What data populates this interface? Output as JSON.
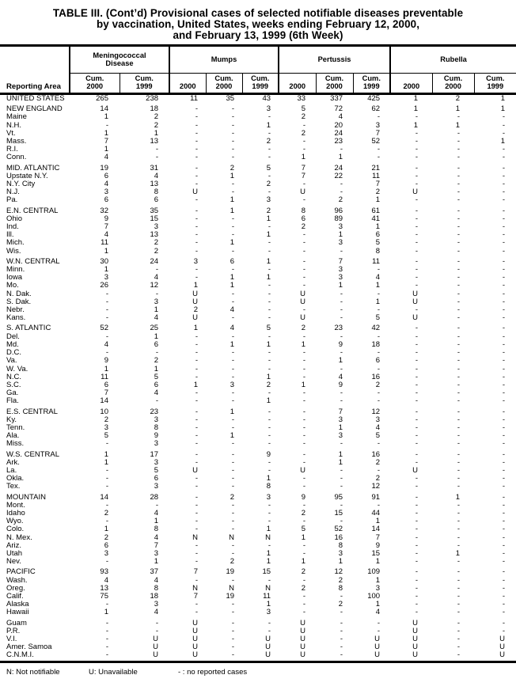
{
  "title": {
    "line1": "TABLE III. (Cont’d) Provisional cases of selected notifiable diseases preventable",
    "line2": "by vaccination, United States, weeks ending February 12, 2000,",
    "line3": "and February 13, 1999 (6th Week)"
  },
  "table": {
    "reporting_area_label": "Reporting Area",
    "groups": [
      {
        "label": "Meningococcal\nDisease",
        "span": 2
      },
      {
        "label": "Mumps",
        "span": 3
      },
      {
        "label": "Pertussis",
        "span": 3
      },
      {
        "label": "Rubella",
        "span": 3
      }
    ],
    "subheads": [
      "Cum.\n2000",
      "Cum.\n1999",
      "2000",
      "Cum.\n2000",
      "Cum.\n1999",
      "2000",
      "Cum.\n2000",
      "Cum.\n1999",
      "2000",
      "Cum.\n2000",
      "Cum.\n1999"
    ],
    "rows": [
      {
        "area": "UNITED STATES",
        "gap_before": false,
        "values": [
          "265",
          "238",
          "11",
          "35",
          "43",
          "33",
          "337",
          "425",
          "1",
          "2",
          "1"
        ]
      },
      {
        "area": "NEW ENGLAND",
        "gap_before": true,
        "values": [
          "14",
          "18",
          "-",
          "-",
          "3",
          "5",
          "72",
          "62",
          "1",
          "1",
          "1"
        ]
      },
      {
        "area": "Maine",
        "gap_before": false,
        "values": [
          "1",
          "2",
          "-",
          "-",
          "-",
          "2",
          "4",
          "-",
          "-",
          "-",
          "-"
        ]
      },
      {
        "area": "N.H.",
        "gap_before": false,
        "values": [
          "-",
          "2",
          "-",
          "-",
          "1",
          "-",
          "20",
          "3",
          "1",
          "1",
          "-"
        ]
      },
      {
        "area": "Vt.",
        "gap_before": false,
        "values": [
          "1",
          "1",
          "-",
          "-",
          "-",
          "2",
          "24",
          "7",
          "-",
          "-",
          "-"
        ]
      },
      {
        "area": "Mass.",
        "gap_before": false,
        "values": [
          "7",
          "13",
          "-",
          "-",
          "2",
          "-",
          "23",
          "52",
          "-",
          "-",
          "1"
        ]
      },
      {
        "area": "R.I.",
        "gap_before": false,
        "values": [
          "1",
          "-",
          "-",
          "-",
          "-",
          "-",
          "-",
          "-",
          "-",
          "-",
          "-"
        ]
      },
      {
        "area": "Conn.",
        "gap_before": false,
        "values": [
          "4",
          "-",
          "-",
          "-",
          "-",
          "1",
          "1",
          "-",
          "-",
          "-",
          "-"
        ]
      },
      {
        "area": "MID. ATLANTIC",
        "gap_before": true,
        "values": [
          "19",
          "31",
          "-",
          "2",
          "5",
          "7",
          "24",
          "21",
          "-",
          "-",
          "-"
        ]
      },
      {
        "area": "Upstate N.Y.",
        "gap_before": false,
        "values": [
          "6",
          "4",
          "-",
          "1",
          "-",
          "7",
          "22",
          "11",
          "-",
          "-",
          "-"
        ]
      },
      {
        "area": "N.Y. City",
        "gap_before": false,
        "values": [
          "4",
          "13",
          "-",
          "-",
          "2",
          "-",
          "-",
          "7",
          "-",
          "-",
          "-"
        ]
      },
      {
        "area": "N.J.",
        "gap_before": false,
        "values": [
          "3",
          "8",
          "U",
          "-",
          "-",
          "U",
          "-",
          "2",
          "U",
          "-",
          "-"
        ]
      },
      {
        "area": "Pa.",
        "gap_before": false,
        "values": [
          "6",
          "6",
          "-",
          "1",
          "3",
          "-",
          "2",
          "1",
          "-",
          "-",
          "-"
        ]
      },
      {
        "area": "E.N. CENTRAL",
        "gap_before": true,
        "values": [
          "32",
          "35",
          "-",
          "1",
          "2",
          "8",
          "96",
          "61",
          "-",
          "-",
          "-"
        ]
      },
      {
        "area": "Ohio",
        "gap_before": false,
        "values": [
          "9",
          "15",
          "-",
          "-",
          "1",
          "6",
          "89",
          "41",
          "-",
          "-",
          "-"
        ]
      },
      {
        "area": "Ind.",
        "gap_before": false,
        "values": [
          "7",
          "3",
          "-",
          "-",
          "-",
          "2",
          "3",
          "1",
          "-",
          "-",
          "-"
        ]
      },
      {
        "area": "Ill.",
        "gap_before": false,
        "values": [
          "4",
          "13",
          "-",
          "-",
          "1",
          "-",
          "1",
          "6",
          "-",
          "-",
          "-"
        ]
      },
      {
        "area": "Mich.",
        "gap_before": false,
        "values": [
          "11",
          "2",
          "-",
          "1",
          "-",
          "-",
          "3",
          "5",
          "-",
          "-",
          "-"
        ]
      },
      {
        "area": "Wis.",
        "gap_before": false,
        "values": [
          "1",
          "2",
          "-",
          "-",
          "-",
          "-",
          "-",
          "8",
          "-",
          "-",
          "-"
        ]
      },
      {
        "area": "W.N. CENTRAL",
        "gap_before": true,
        "values": [
          "30",
          "24",
          "3",
          "6",
          "1",
          "-",
          "7",
          "11",
          "-",
          "-",
          "-"
        ]
      },
      {
        "area": "Minn.",
        "gap_before": false,
        "values": [
          "1",
          "-",
          "-",
          "-",
          "-",
          "-",
          "3",
          "-",
          "-",
          "-",
          "-"
        ]
      },
      {
        "area": "Iowa",
        "gap_before": false,
        "values": [
          "3",
          "4",
          "-",
          "1",
          "1",
          "-",
          "3",
          "4",
          "-",
          "-",
          "-"
        ]
      },
      {
        "area": "Mo.",
        "gap_before": false,
        "values": [
          "26",
          "12",
          "1",
          "1",
          "-",
          "-",
          "1",
          "1",
          "-",
          "-",
          "-"
        ]
      },
      {
        "area": "N. Dak.",
        "gap_before": false,
        "values": [
          "-",
          "-",
          "U",
          "-",
          "-",
          "U",
          "-",
          "-",
          "U",
          "-",
          "-"
        ]
      },
      {
        "area": "S. Dak.",
        "gap_before": false,
        "values": [
          "-",
          "3",
          "U",
          "-",
          "-",
          "U",
          "-",
          "1",
          "U",
          "-",
          "-"
        ]
      },
      {
        "area": "Nebr.",
        "gap_before": false,
        "values": [
          "-",
          "1",
          "2",
          "4",
          "-",
          "-",
          "-",
          "-",
          "-",
          "-",
          "-"
        ]
      },
      {
        "area": "Kans.",
        "gap_before": false,
        "values": [
          "-",
          "4",
          "U",
          "-",
          "-",
          "U",
          "-",
          "5",
          "U",
          "-",
          "-"
        ]
      },
      {
        "area": "S. ATLANTIC",
        "gap_before": true,
        "values": [
          "52",
          "25",
          "1",
          "4",
          "5",
          "2",
          "23",
          "42",
          "-",
          "-",
          "-"
        ]
      },
      {
        "area": "Del.",
        "gap_before": false,
        "values": [
          "-",
          "1",
          "-",
          "-",
          "-",
          "-",
          "-",
          "-",
          "-",
          "-",
          "-"
        ]
      },
      {
        "area": "Md.",
        "gap_before": false,
        "values": [
          "4",
          "6",
          "-",
          "1",
          "1",
          "1",
          "9",
          "18",
          "-",
          "-",
          "-"
        ]
      },
      {
        "area": "D.C.",
        "gap_before": false,
        "values": [
          "-",
          "-",
          "-",
          "-",
          "-",
          "-",
          "-",
          "-",
          "-",
          "-",
          "-"
        ]
      },
      {
        "area": "Va.",
        "gap_before": false,
        "values": [
          "9",
          "2",
          "-",
          "-",
          "-",
          "-",
          "1",
          "6",
          "-",
          "-",
          "-"
        ]
      },
      {
        "area": "W. Va.",
        "gap_before": false,
        "values": [
          "1",
          "1",
          "-",
          "-",
          "-",
          "-",
          "-",
          "-",
          "-",
          "-",
          "-"
        ]
      },
      {
        "area": "N.C.",
        "gap_before": false,
        "values": [
          "11",
          "5",
          "-",
          "-",
          "1",
          "-",
          "4",
          "16",
          "-",
          "-",
          "-"
        ]
      },
      {
        "area": "S.C.",
        "gap_before": false,
        "values": [
          "6",
          "6",
          "1",
          "3",
          "2",
          "1",
          "9",
          "2",
          "-",
          "-",
          "-"
        ]
      },
      {
        "area": "Ga.",
        "gap_before": false,
        "values": [
          "7",
          "4",
          "-",
          "-",
          "-",
          "-",
          "-",
          "-",
          "-",
          "-",
          "-"
        ]
      },
      {
        "area": "Fla.",
        "gap_before": false,
        "values": [
          "14",
          "-",
          "-",
          "-",
          "1",
          "-",
          "-",
          "-",
          "-",
          "-",
          "-"
        ]
      },
      {
        "area": "E.S. CENTRAL",
        "gap_before": true,
        "values": [
          "10",
          "23",
          "-",
          "1",
          "-",
          "-",
          "7",
          "12",
          "-",
          "-",
          "-"
        ]
      },
      {
        "area": "Ky.",
        "gap_before": false,
        "values": [
          "2",
          "3",
          "-",
          "-",
          "-",
          "-",
          "3",
          "3",
          "-",
          "-",
          "-"
        ]
      },
      {
        "area": "Tenn.",
        "gap_before": false,
        "values": [
          "3",
          "8",
          "-",
          "-",
          "-",
          "-",
          "1",
          "4",
          "-",
          "-",
          "-"
        ]
      },
      {
        "area": "Ala.",
        "gap_before": false,
        "values": [
          "5",
          "9",
          "-",
          "1",
          "-",
          "-",
          "3",
          "5",
          "-",
          "-",
          "-"
        ]
      },
      {
        "area": "Miss.",
        "gap_before": false,
        "values": [
          "-",
          "3",
          "-",
          "-",
          "-",
          "-",
          "-",
          "-",
          "-",
          "-",
          "-"
        ]
      },
      {
        "area": "W.S. CENTRAL",
        "gap_before": true,
        "values": [
          "1",
          "17",
          "-",
          "-",
          "9",
          "-",
          "1",
          "16",
          "-",
          "-",
          "-"
        ]
      },
      {
        "area": "Ark.",
        "gap_before": false,
        "values": [
          "1",
          "3",
          "-",
          "-",
          "-",
          "-",
          "1",
          "2",
          "-",
          "-",
          "-"
        ]
      },
      {
        "area": "La.",
        "gap_before": false,
        "values": [
          "-",
          "5",
          "U",
          "-",
          "-",
          "U",
          "-",
          "-",
          "U",
          "-",
          "-"
        ]
      },
      {
        "area": "Okla.",
        "gap_before": false,
        "values": [
          "-",
          "6",
          "-",
          "-",
          "1",
          "-",
          "-",
          "2",
          "-",
          "-",
          "-"
        ]
      },
      {
        "area": "Tex.",
        "gap_before": false,
        "values": [
          "-",
          "3",
          "-",
          "-",
          "8",
          "-",
          "-",
          "12",
          "-",
          "-",
          "-"
        ]
      },
      {
        "area": "MOUNTAIN",
        "gap_before": true,
        "values": [
          "14",
          "28",
          "-",
          "2",
          "3",
          "9",
          "95",
          "91",
          "-",
          "1",
          "-"
        ]
      },
      {
        "area": "Mont.",
        "gap_before": false,
        "values": [
          "-",
          "-",
          "-",
          "-",
          "-",
          "-",
          "-",
          "-",
          "-",
          "-",
          "-"
        ]
      },
      {
        "area": "Idaho",
        "gap_before": false,
        "values": [
          "2",
          "4",
          "-",
          "-",
          "-",
          "2",
          "15",
          "44",
          "-",
          "-",
          "-"
        ]
      },
      {
        "area": "Wyo.",
        "gap_before": false,
        "values": [
          "-",
          "1",
          "-",
          "-",
          "-",
          "-",
          "-",
          "1",
          "-",
          "-",
          "-"
        ]
      },
      {
        "area": "Colo.",
        "gap_before": false,
        "values": [
          "1",
          "8",
          "-",
          "-",
          "1",
          "5",
          "52",
          "14",
          "-",
          "-",
          "-"
        ]
      },
      {
        "area": "N. Mex.",
        "gap_before": false,
        "values": [
          "2",
          "4",
          "N",
          "N",
          "N",
          "1",
          "16",
          "7",
          "-",
          "-",
          "-"
        ]
      },
      {
        "area": "Ariz.",
        "gap_before": false,
        "values": [
          "6",
          "7",
          "-",
          "-",
          "-",
          "-",
          "8",
          "9",
          "-",
          "-",
          "-"
        ]
      },
      {
        "area": "Utah",
        "gap_before": false,
        "values": [
          "3",
          "3",
          "-",
          "-",
          "1",
          "-",
          "3",
          "15",
          "-",
          "1",
          "-"
        ]
      },
      {
        "area": "Nev.",
        "gap_before": false,
        "values": [
          "-",
          "1",
          "-",
          "2",
          "1",
          "1",
          "1",
          "1",
          "-",
          "-",
          "-"
        ]
      },
      {
        "area": "PACIFIC",
        "gap_before": true,
        "values": [
          "93",
          "37",
          "7",
          "19",
          "15",
          "2",
          "12",
          "109",
          "-",
          "-",
          "-"
        ]
      },
      {
        "area": "Wash.",
        "gap_before": false,
        "values": [
          "4",
          "4",
          "-",
          "-",
          "-",
          "-",
          "2",
          "1",
          "-",
          "-",
          "-"
        ]
      },
      {
        "area": "Oreg.",
        "gap_before": false,
        "values": [
          "13",
          "8",
          "N",
          "N",
          "N",
          "2",
          "8",
          "3",
          "-",
          "-",
          "-"
        ]
      },
      {
        "area": "Calif.",
        "gap_before": false,
        "values": [
          "75",
          "18",
          "7",
          "19",
          "11",
          "-",
          "-",
          "100",
          "-",
          "-",
          "-"
        ]
      },
      {
        "area": "Alaska",
        "gap_before": false,
        "values": [
          "-",
          "3",
          "-",
          "-",
          "1",
          "-",
          "2",
          "1",
          "-",
          "-",
          "-"
        ]
      },
      {
        "area": "Hawaii",
        "gap_before": false,
        "values": [
          "1",
          "4",
          "-",
          "-",
          "3",
          "-",
          "-",
          "4",
          "-",
          "-",
          "-"
        ]
      },
      {
        "area": "Guam",
        "gap_before": true,
        "values": [
          "-",
          "-",
          "U",
          "-",
          "-",
          "U",
          "-",
          "-",
          "U",
          "-",
          "-"
        ]
      },
      {
        "area": "P.R.",
        "gap_before": false,
        "values": [
          "-",
          "-",
          "U",
          "-",
          "-",
          "U",
          "-",
          "-",
          "U",
          "-",
          "-"
        ]
      },
      {
        "area": "V.I.",
        "gap_before": false,
        "values": [
          "-",
          "U",
          "U",
          "-",
          "U",
          "U",
          "-",
          "U",
          "U",
          "-",
          "U"
        ]
      },
      {
        "area": "Amer. Samoa",
        "gap_before": false,
        "values": [
          "-",
          "U",
          "U",
          "-",
          "U",
          "U",
          "-",
          "U",
          "U",
          "-",
          "U"
        ]
      },
      {
        "area": "C.N.M.I.",
        "gap_before": false,
        "values": [
          "-",
          "U",
          "U",
          "-",
          "U",
          "U",
          "-",
          "U",
          "U",
          "-",
          "U"
        ]
      }
    ]
  },
  "footnotes": {
    "not_notifiable": "N: Not notifiable",
    "unavailable": "U: Unavailable",
    "no_cases": "- : no reported cases"
  }
}
